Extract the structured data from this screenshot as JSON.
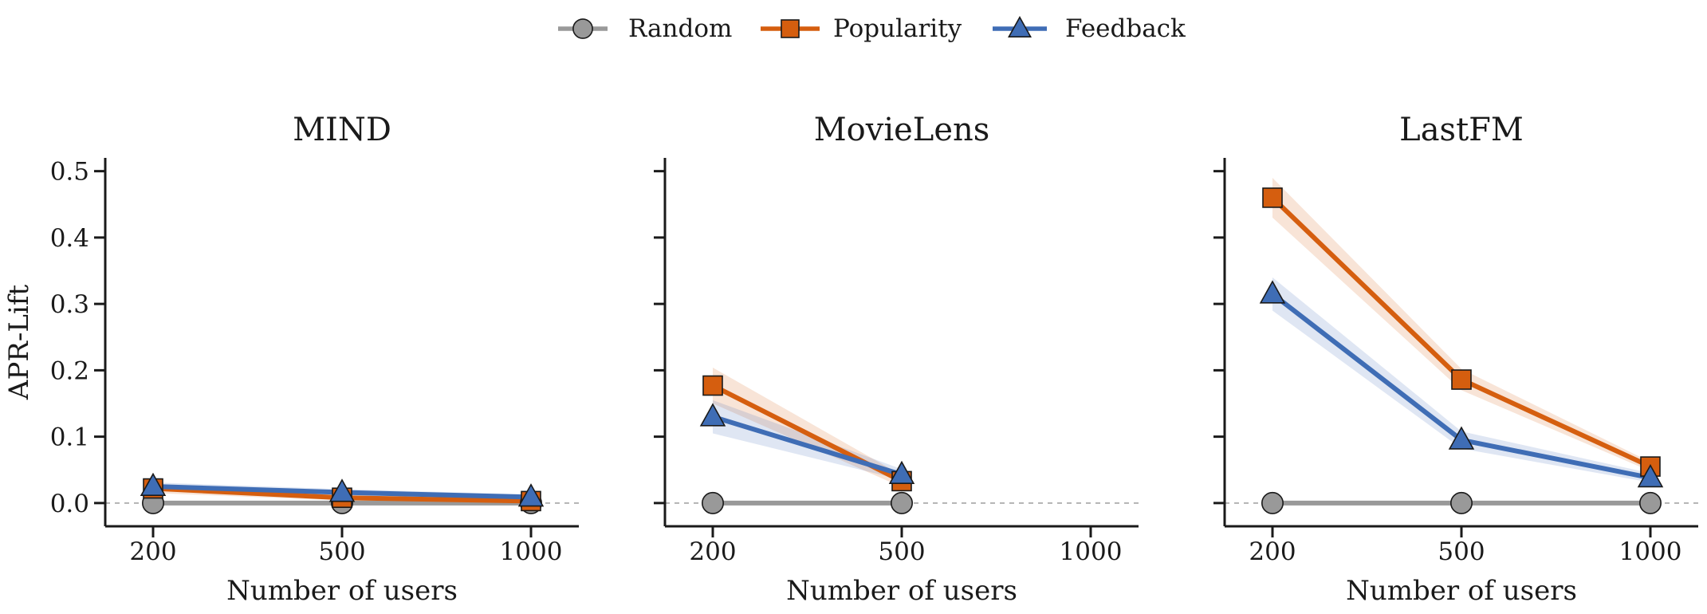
{
  "legend": [
    {
      "name": "Random",
      "color": "#999999",
      "marker": "circle",
      "fill": "#999999"
    },
    {
      "name": "Popularity",
      "color": "#d55e0f",
      "marker": "square",
      "fill": "#d55e0f"
    },
    {
      "name": "Feedback",
      "color": "#3f6db5",
      "marker": "triangle",
      "fill": "#3f6db5"
    }
  ],
  "chart_data": [
    {
      "type": "line",
      "title": "MIND",
      "xlabel": "Number of users",
      "ylabel": "APR-Lift",
      "categories": [
        "200",
        "500",
        "1000"
      ],
      "ylim": [
        -0.035,
        0.52
      ],
      "yticks": [
        "0.0",
        "0.1",
        "0.2",
        "0.3",
        "0.4",
        "0.5"
      ],
      "reference_line": 0,
      "series": [
        {
          "name": "Random",
          "values": [
            0.0,
            0.0,
            0.0
          ],
          "band_low": [
            0.0,
            0.0,
            0.0
          ],
          "band_high": [
            0.0,
            0.0,
            0.0
          ]
        },
        {
          "name": "Popularity",
          "values": [
            0.022,
            0.008,
            0.003
          ],
          "band_low": [
            0.015,
            0.004,
            0.0
          ],
          "band_high": [
            0.029,
            0.013,
            0.007
          ]
        },
        {
          "name": "Feedback",
          "values": [
            0.025,
            0.016,
            0.009
          ],
          "band_low": [
            0.019,
            0.011,
            0.005
          ],
          "band_high": [
            0.031,
            0.021,
            0.013
          ]
        }
      ]
    },
    {
      "type": "line",
      "title": "MovieLens",
      "xlabel": "Number of users",
      "ylabel": "",
      "categories": [
        "200",
        "500",
        "1000"
      ],
      "ylim": [
        -0.035,
        0.52
      ],
      "yticks": [
        "",
        "",
        "",
        "",
        "",
        ""
      ],
      "reference_line": 0,
      "series": [
        {
          "name": "Random",
          "values": [
            0.0,
            0.0,
            null
          ],
          "band_low": [
            0.0,
            0.0,
            null
          ],
          "band_high": [
            0.0,
            0.0,
            null
          ]
        },
        {
          "name": "Popularity",
          "values": [
            0.177,
            0.033,
            null
          ],
          "band_low": [
            0.15,
            0.024,
            null
          ],
          "band_high": [
            0.204,
            0.042,
            null
          ]
        },
        {
          "name": "Feedback",
          "values": [
            0.13,
            0.043,
            null
          ],
          "band_low": [
            0.105,
            0.035,
            null
          ],
          "band_high": [
            0.155,
            0.051,
            null
          ]
        }
      ]
    },
    {
      "type": "line",
      "title": "LastFM",
      "xlabel": "Number of users",
      "ylabel": "",
      "categories": [
        "200",
        "500",
        "1000"
      ],
      "ylim": [
        -0.035,
        0.52
      ],
      "yticks": [
        "",
        "",
        "",
        "",
        "",
        ""
      ],
      "reference_line": 0,
      "series": [
        {
          "name": "Random",
          "values": [
            0.0,
            0.0,
            0.0
          ],
          "band_low": [
            0.0,
            0.0,
            0.0
          ],
          "band_high": [
            0.0,
            0.0,
            0.0
          ]
        },
        {
          "name": "Popularity",
          "values": [
            0.46,
            0.186,
            0.055
          ],
          "band_low": [
            0.43,
            0.17,
            0.048
          ],
          "band_high": [
            0.49,
            0.202,
            0.062
          ]
        },
        {
          "name": "Feedback",
          "values": [
            0.315,
            0.095,
            0.038
          ],
          "band_low": [
            0.29,
            0.082,
            0.031
          ],
          "band_high": [
            0.34,
            0.108,
            0.045
          ]
        }
      ]
    }
  ]
}
